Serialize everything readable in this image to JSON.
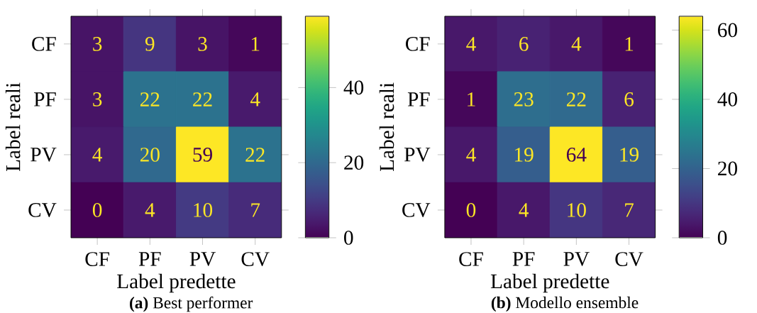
{
  "chart_data": [
    {
      "type": "heatmap",
      "title": "**(a)** Best performer",
      "xlabel": "Label predette",
      "ylabel": "Label reali",
      "categories": [
        "CF",
        "PF",
        "PV",
        "CV"
      ],
      "y_categories": [
        "CF",
        "PF",
        "PV",
        "CV"
      ],
      "cells": [
        [
          3,
          9,
          3,
          1
        ],
        [
          3,
          22,
          22,
          4
        ],
        [
          4,
          20,
          59,
          22
        ],
        [
          0,
          4,
          10,
          7
        ]
      ],
      "clim": [
        0,
        59
      ],
      "cticks": [
        0,
        20,
        40
      ],
      "data_labels": true
    },
    {
      "type": "heatmap",
      "title": "**(b)** Modello ensemble",
      "xlabel": "Label predette",
      "ylabel": "Label reali",
      "categories": [
        "CF",
        "PF",
        "PV",
        "CV"
      ],
      "y_categories": [
        "CF",
        "PF",
        "PV",
        "CV"
      ],
      "cells": [
        [
          4,
          6,
          4,
          1
        ],
        [
          1,
          23,
          22,
          6
        ],
        [
          4,
          19,
          64,
          19
        ],
        [
          0,
          4,
          10,
          7
        ]
      ],
      "clim": [
        0,
        64
      ],
      "cticks": [
        0,
        20,
        40,
        60
      ],
      "data_labels": true
    }
  ]
}
